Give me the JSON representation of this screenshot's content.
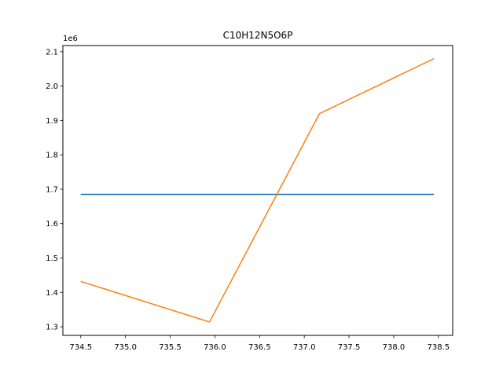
{
  "chart_data": {
    "type": "line",
    "title": "C10H12N5O6P",
    "xlabel": "",
    "ylabel": "",
    "y_offset_label": "1e6",
    "xlim": [
      734.3,
      738.66
    ],
    "ylim": [
      1275000,
      2118000
    ],
    "grid": false,
    "x_ticks": [
      734.5,
      735.0,
      735.5,
      736.0,
      736.5,
      737.0,
      737.5,
      738.0,
      738.5
    ],
    "x_tick_labels": [
      "734.5",
      "735.0",
      "735.5",
      "736.0",
      "736.5",
      "737.0",
      "737.5",
      "738.0",
      "738.5"
    ],
    "y_ticks": [
      1300000,
      1400000,
      1500000,
      1600000,
      1700000,
      1800000,
      1900000,
      2000000,
      2100000
    ],
    "y_tick_labels": [
      "1.3",
      "1.4",
      "1.5",
      "1.6",
      "1.7",
      "1.8",
      "1.9",
      "2.0",
      "2.1"
    ],
    "series": [
      {
        "color": "#1f77b4",
        "x": [
          734.5,
          738.45
        ],
        "y": [
          1685000,
          1685000
        ]
      },
      {
        "color": "#ff7f0e",
        "x": [
          734.5,
          735.94,
          737.17,
          738.45
        ],
        "y": [
          1432000,
          1314000,
          1920000,
          2080000
        ]
      }
    ]
  }
}
